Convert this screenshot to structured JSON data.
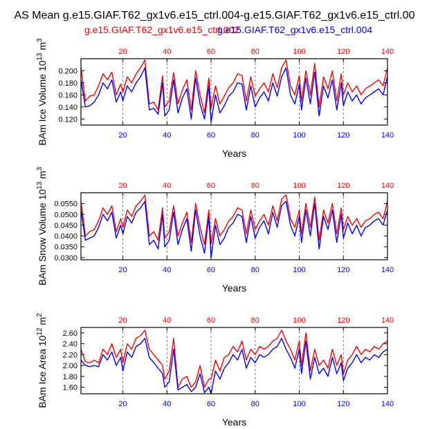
{
  "page": {
    "title": "AS Mean g.e15.GIAF.T62_gx1v6.e15_ctrl.004-g.e15.GIAF.T62_gx1v6.e15_ctrl.00"
  },
  "legend": {
    "red_label": "g.e15.GIAF.T62_gx1v6.e15_ctrl.002",
    "blue_label": "g.e15.GIAF.T62_gx1v6.e15_ctrl.004"
  },
  "colors": {
    "series_a": "#ff0000",
    "series_b": "#0000ff",
    "axis": "#000000",
    "grid": "#555555"
  },
  "chart_data": [
    {
      "type": "line",
      "panel": "ice-volume",
      "ylabel": "BAm Ice Volume 10",
      "ylabel_exp": "13",
      "ylabel_unit": "m",
      "ylabel_unit_exp": "3",
      "xlabel": "Years",
      "xlim": [
        1,
        140
      ],
      "ylim": [
        0.11,
        0.22
      ],
      "yticks": [
        0.12,
        0.14,
        0.16,
        0.18,
        0.2
      ],
      "ytick_labels": [
        "0.120",
        "0.140",
        "0.160",
        "0.180",
        "0.200"
      ],
      "xticks": [
        20,
        40,
        60,
        80,
        100,
        120,
        140
      ],
      "xtick_labels": [
        "20",
        "40",
        "60",
        "80",
        "100",
        "120",
        "140"
      ],
      "grid_x": [
        20,
        40,
        60,
        80,
        100,
        120
      ],
      "series": [
        {
          "name": "g.e15.GIAF.T62_gx1v6.e15_ctrl.002",
          "color": "red",
          "x": [
            1,
            3,
            5,
            7,
            9,
            11,
            13,
            15,
            17,
            19,
            20,
            22,
            24,
            26,
            28,
            30,
            32,
            34,
            36,
            38,
            39,
            41,
            43,
            45,
            47,
            49,
            51,
            53,
            55,
            57,
            59,
            60,
            62,
            64,
            66,
            68,
            70,
            72,
            74,
            76,
            78,
            80,
            82,
            84,
            86,
            88,
            90,
            92,
            94,
            96,
            98,
            100,
            101,
            103,
            105,
            107,
            109,
            111,
            113,
            115,
            117,
            119,
            120,
            122,
            124,
            126,
            128,
            130,
            132,
            134,
            136,
            138,
            140
          ],
          "values": [
            0.205,
            0.15,
            0.158,
            0.16,
            0.175,
            0.195,
            0.185,
            0.198,
            0.16,
            0.178,
            0.165,
            0.19,
            0.18,
            0.195,
            0.205,
            0.218,
            0.145,
            0.148,
            0.135,
            0.192,
            0.14,
            0.15,
            0.197,
            0.145,
            0.168,
            0.185,
            0.135,
            0.2,
            0.16,
            0.13,
            0.188,
            0.138,
            0.175,
            0.145,
            0.158,
            0.172,
            0.18,
            0.195,
            0.192,
            0.15,
            0.19,
            0.158,
            0.17,
            0.18,
            0.165,
            0.195,
            0.172,
            0.205,
            0.218,
            0.175,
            0.16,
            0.192,
            0.15,
            0.2,
            0.16,
            0.212,
            0.14,
            0.19,
            0.17,
            0.2,
            0.15,
            0.195,
            0.16,
            0.18,
            0.165,
            0.175,
            0.16,
            0.17,
            0.175,
            0.18,
            0.185,
            0.175,
            0.205
          ]
        },
        {
          "name": "g.e15.GIAF.T62_gx1v6.e15_ctrl.004",
          "color": "blue",
          "x": [
            1,
            3,
            5,
            7,
            9,
            11,
            13,
            15,
            17,
            19,
            20,
            22,
            24,
            26,
            28,
            30,
            32,
            34,
            36,
            38,
            39,
            41,
            43,
            45,
            47,
            49,
            51,
            53,
            55,
            57,
            59,
            60,
            62,
            64,
            66,
            68,
            70,
            72,
            74,
            76,
            78,
            80,
            82,
            84,
            86,
            88,
            90,
            92,
            94,
            96,
            98,
            100,
            101,
            103,
            105,
            107,
            109,
            111,
            113,
            115,
            117,
            119,
            120,
            122,
            124,
            126,
            128,
            130,
            132,
            134,
            136,
            138,
            140
          ],
          "values": [
            0.185,
            0.14,
            0.142,
            0.148,
            0.16,
            0.18,
            0.17,
            0.185,
            0.148,
            0.165,
            0.15,
            0.175,
            0.165,
            0.18,
            0.19,
            0.205,
            0.135,
            0.138,
            0.128,
            0.18,
            0.125,
            0.135,
            0.185,
            0.13,
            0.155,
            0.17,
            0.12,
            0.188,
            0.145,
            0.12,
            0.175,
            0.115,
            0.16,
            0.13,
            0.142,
            0.158,
            0.165,
            0.18,
            0.178,
            0.135,
            0.175,
            0.14,
            0.155,
            0.165,
            0.15,
            0.18,
            0.158,
            0.19,
            0.205,
            0.16,
            0.145,
            0.178,
            0.135,
            0.188,
            0.145,
            0.198,
            0.125,
            0.175,
            0.155,
            0.185,
            0.135,
            0.18,
            0.142,
            0.165,
            0.15,
            0.16,
            0.145,
            0.155,
            0.16,
            0.165,
            0.17,
            0.16,
            0.19
          ]
        }
      ]
    },
    {
      "type": "line",
      "panel": "snow-volume",
      "ylabel": "BAm Snow Volume 10",
      "ylabel_exp": "13",
      "ylabel_unit": "m",
      "ylabel_unit_exp": "3",
      "xlabel": "Years",
      "xlim": [
        1,
        140
      ],
      "ylim": [
        0.029,
        0.06
      ],
      "yticks": [
        0.03,
        0.035,
        0.04,
        0.045,
        0.05,
        0.055
      ],
      "ytick_labels": [
        "0.0300",
        "0.0350",
        "0.0400",
        "0.0450",
        "0.0500",
        "0.0550"
      ],
      "xticks": [
        20,
        40,
        60,
        80,
        100,
        120,
        140
      ],
      "xtick_labels": [
        "20",
        "40",
        "60",
        "80",
        "100",
        "120",
        "140"
      ],
      "grid_x": [
        20,
        40,
        60,
        80,
        100,
        120
      ],
      "series": [
        {
          "name": "g.e15.GIAF.T62_gx1v6.e15_ctrl.002",
          "color": "red",
          "x": [
            1,
            3,
            5,
            7,
            9,
            11,
            13,
            15,
            17,
            19,
            20,
            22,
            24,
            26,
            28,
            30,
            32,
            34,
            36,
            38,
            39,
            41,
            43,
            45,
            47,
            49,
            51,
            53,
            55,
            57,
            59,
            60,
            62,
            64,
            66,
            68,
            70,
            72,
            74,
            76,
            78,
            80,
            82,
            84,
            86,
            88,
            90,
            92,
            94,
            96,
            98,
            100,
            101,
            103,
            105,
            107,
            109,
            111,
            113,
            115,
            117,
            119,
            120,
            122,
            124,
            126,
            128,
            130,
            132,
            134,
            136,
            138,
            140
          ],
          "values": [
            0.056,
            0.04,
            0.042,
            0.043,
            0.047,
            0.053,
            0.05,
            0.054,
            0.042,
            0.048,
            0.044,
            0.052,
            0.049,
            0.054,
            0.056,
            0.059,
            0.04,
            0.042,
            0.038,
            0.053,
            0.039,
            0.042,
            0.054,
            0.04,
            0.046,
            0.051,
            0.037,
            0.055,
            0.044,
            0.036,
            0.052,
            0.036,
            0.048,
            0.04,
            0.043,
            0.047,
            0.049,
            0.053,
            0.052,
            0.041,
            0.052,
            0.043,
            0.047,
            0.05,
            0.045,
            0.054,
            0.047,
            0.057,
            0.059,
            0.048,
            0.044,
            0.052,
            0.041,
            0.055,
            0.044,
            0.058,
            0.038,
            0.052,
            0.046,
            0.055,
            0.041,
            0.053,
            0.043,
            0.049,
            0.045,
            0.048,
            0.044,
            0.047,
            0.048,
            0.05,
            0.051,
            0.048,
            0.056
          ]
        },
        {
          "name": "g.e15.GIAF.T62_gx1v6.e15_ctrl.004",
          "color": "blue",
          "x": [
            1,
            3,
            5,
            7,
            9,
            11,
            13,
            15,
            17,
            19,
            20,
            22,
            24,
            26,
            28,
            30,
            32,
            34,
            36,
            38,
            39,
            41,
            43,
            45,
            47,
            49,
            51,
            53,
            55,
            57,
            59,
            60,
            62,
            64,
            66,
            68,
            70,
            72,
            74,
            76,
            78,
            80,
            82,
            84,
            86,
            88,
            90,
            92,
            94,
            96,
            98,
            100,
            101,
            103,
            105,
            107,
            109,
            111,
            113,
            115,
            117,
            119,
            120,
            122,
            124,
            126,
            128,
            130,
            132,
            134,
            136,
            138,
            140
          ],
          "values": [
            0.052,
            0.038,
            0.039,
            0.04,
            0.044,
            0.05,
            0.047,
            0.051,
            0.039,
            0.045,
            0.041,
            0.049,
            0.046,
            0.051,
            0.053,
            0.056,
            0.036,
            0.038,
            0.034,
            0.05,
            0.035,
            0.038,
            0.051,
            0.036,
            0.043,
            0.048,
            0.033,
            0.052,
            0.04,
            0.032,
            0.049,
            0.03,
            0.045,
            0.036,
            0.039,
            0.044,
            0.046,
            0.05,
            0.049,
            0.037,
            0.049,
            0.039,
            0.044,
            0.047,
            0.041,
            0.051,
            0.044,
            0.054,
            0.056,
            0.045,
            0.04,
            0.049,
            0.037,
            0.052,
            0.04,
            0.055,
            0.034,
            0.049,
            0.043,
            0.052,
            0.037,
            0.05,
            0.039,
            0.046,
            0.041,
            0.045,
            0.04,
            0.044,
            0.045,
            0.047,
            0.048,
            0.045,
            0.052
          ]
        }
      ]
    },
    {
      "type": "line",
      "panel": "ice-area",
      "ylabel": "BAm Ice Area 10",
      "ylabel_exp": "12",
      "ylabel_unit": "m",
      "ylabel_unit_exp": "2",
      "xlabel": "Years",
      "xlim": [
        1,
        140
      ],
      "ylim": [
        1.48,
        2.7
      ],
      "yticks": [
        1.6,
        1.8,
        2.0,
        2.2,
        2.4,
        2.6
      ],
      "ytick_labels": [
        "1.60",
        "1.80",
        "2.00",
        "2.20",
        "2.40",
        "2.60"
      ],
      "xticks": [
        20,
        40,
        60,
        80,
        100,
        120,
        140
      ],
      "xtick_labels": [
        "20",
        "40",
        "60",
        "80",
        "100",
        "120",
        "140"
      ],
      "grid_x": [
        20,
        40,
        60,
        80,
        100,
        120
      ],
      "series": [
        {
          "name": "g.e15.GIAF.T62_gx1v6.e15_ctrl.002",
          "color": "red",
          "x": [
            1,
            3,
            5,
            7,
            9,
            11,
            13,
            15,
            17,
            19,
            20,
            22,
            24,
            26,
            28,
            30,
            32,
            34,
            36,
            38,
            39,
            41,
            43,
            45,
            47,
            49,
            51,
            53,
            55,
            57,
            59,
            60,
            62,
            64,
            66,
            68,
            70,
            72,
            74,
            76,
            78,
            80,
            82,
            84,
            86,
            88,
            90,
            92,
            94,
            96,
            98,
            100,
            101,
            103,
            105,
            107,
            109,
            111,
            113,
            115,
            117,
            119,
            120,
            122,
            124,
            126,
            128,
            130,
            132,
            134,
            136,
            138,
            140
          ],
          "values": [
            2.3,
            2.07,
            2.05,
            2.1,
            2.05,
            2.3,
            2.2,
            2.4,
            2.15,
            2.3,
            2.05,
            2.4,
            2.3,
            2.5,
            2.55,
            2.65,
            2.3,
            2.2,
            2.1,
            2.0,
            1.75,
            1.9,
            2.5,
            1.6,
            1.75,
            1.8,
            1.6,
            1.7,
            2.0,
            1.6,
            1.75,
            1.75,
            2.1,
            1.9,
            2.15,
            2.2,
            2.35,
            2.25,
            2.45,
            2.1,
            2.3,
            2.2,
            2.35,
            2.3,
            2.35,
            2.45,
            2.5,
            2.65,
            2.45,
            2.3,
            2.1,
            2.45,
            2.0,
            2.6,
            1.9,
            2.3,
            2.0,
            2.1,
            1.95,
            2.3,
            2.0,
            2.2,
            1.85,
            2.1,
            2.2,
            2.35,
            2.2,
            2.3,
            2.25,
            2.35,
            2.3,
            2.4,
            2.45
          ]
        },
        {
          "name": "g.e15.GIAF.T62_gx1v6.e15_ctrl.004",
          "color": "blue",
          "x": [
            1,
            3,
            5,
            7,
            9,
            11,
            13,
            15,
            17,
            19,
            20,
            22,
            24,
            26,
            28,
            30,
            32,
            34,
            36,
            38,
            39,
            41,
            43,
            45,
            47,
            49,
            51,
            53,
            55,
            57,
            59,
            60,
            62,
            64,
            66,
            68,
            70,
            72,
            74,
            76,
            78,
            80,
            82,
            84,
            86,
            88,
            90,
            92,
            94,
            96,
            98,
            100,
            101,
            103,
            105,
            107,
            109,
            111,
            113,
            115,
            117,
            119,
            120,
            122,
            124,
            126,
            128,
            130,
            132,
            134,
            136,
            138,
            140
          ],
          "values": [
            2.1,
            2.0,
            1.98,
            2.0,
            1.98,
            2.2,
            2.1,
            2.25,
            2.0,
            2.15,
            1.9,
            2.25,
            2.15,
            2.35,
            2.4,
            2.5,
            2.15,
            2.05,
            1.95,
            1.85,
            1.6,
            1.7,
            2.3,
            1.55,
            1.6,
            1.65,
            1.52,
            1.6,
            1.85,
            1.5,
            1.6,
            1.48,
            1.9,
            1.75,
            1.95,
            2.05,
            2.2,
            2.1,
            2.3,
            1.95,
            2.15,
            2.05,
            2.2,
            2.15,
            2.2,
            2.3,
            2.35,
            2.5,
            2.3,
            2.15,
            1.95,
            2.3,
            1.85,
            2.45,
            1.75,
            2.15,
            1.85,
            1.95,
            1.8,
            2.15,
            1.85,
            2.05,
            1.72,
            1.95,
            2.05,
            2.2,
            2.05,
            2.15,
            2.1,
            2.2,
            2.15,
            2.25,
            2.3
          ]
        }
      ]
    }
  ]
}
